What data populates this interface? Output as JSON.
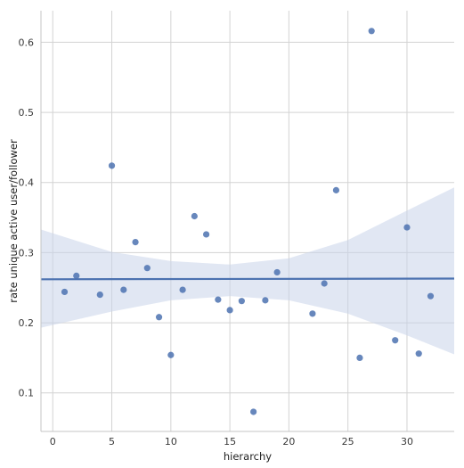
{
  "chart_data": {
    "type": "scatter",
    "title": "",
    "xlabel": "hierarchy",
    "ylabel": "rate unique active user/follower",
    "xlim": [
      -1,
      34
    ],
    "ylim": [
      0.045,
      0.645
    ],
    "x_ticks": [
      0,
      5,
      10,
      15,
      20,
      25,
      30
    ],
    "y_ticks": [
      0.1,
      0.2,
      0.3,
      0.4,
      0.5,
      0.6
    ],
    "grid": true,
    "legend": "none",
    "point_color": "#4c72b0",
    "line_color": "#4c72b0",
    "band_color": "#c8d3ea",
    "points": [
      {
        "x": 1,
        "y": 0.244
      },
      {
        "x": 2,
        "y": 0.267
      },
      {
        "x": 4,
        "y": 0.24
      },
      {
        "x": 5,
        "y": 0.424
      },
      {
        "x": 6,
        "y": 0.247
      },
      {
        "x": 7,
        "y": 0.315
      },
      {
        "x": 8,
        "y": 0.278
      },
      {
        "x": 9,
        "y": 0.208
      },
      {
        "x": 10,
        "y": 0.154
      },
      {
        "x": 11,
        "y": 0.247
      },
      {
        "x": 12,
        "y": 0.352
      },
      {
        "x": 13,
        "y": 0.326
      },
      {
        "x": 14,
        "y": 0.233
      },
      {
        "x": 15,
        "y": 0.218
      },
      {
        "x": 16,
        "y": 0.231
      },
      {
        "x": 17,
        "y": 0.073
      },
      {
        "x": 18,
        "y": 0.232
      },
      {
        "x": 19,
        "y": 0.272
      },
      {
        "x": 22,
        "y": 0.213
      },
      {
        "x": 23,
        "y": 0.256
      },
      {
        "x": 24,
        "y": 0.389
      },
      {
        "x": 26,
        "y": 0.15
      },
      {
        "x": 27,
        "y": 0.616
      },
      {
        "x": 29,
        "y": 0.175
      },
      {
        "x": 30,
        "y": 0.336
      },
      {
        "x": 31,
        "y": 0.156
      },
      {
        "x": 32,
        "y": 0.238
      }
    ],
    "regression": {
      "x_range": [
        -1,
        34
      ],
      "y_values": [
        0.262,
        0.263
      ]
    },
    "confidence_band": [
      {
        "x": -1,
        "lower": 0.193,
        "upper": 0.333
      },
      {
        "x": 5,
        "lower": 0.216,
        "upper": 0.301
      },
      {
        "x": 10,
        "lower": 0.232,
        "upper": 0.288
      },
      {
        "x": 15,
        "lower": 0.238,
        "upper": 0.283
      },
      {
        "x": 20,
        "lower": 0.232,
        "upper": 0.292
      },
      {
        "x": 25,
        "lower": 0.213,
        "upper": 0.318
      },
      {
        "x": 30,
        "lower": 0.182,
        "upper": 0.36
      },
      {
        "x": 34,
        "lower": 0.155,
        "upper": 0.393
      }
    ]
  }
}
